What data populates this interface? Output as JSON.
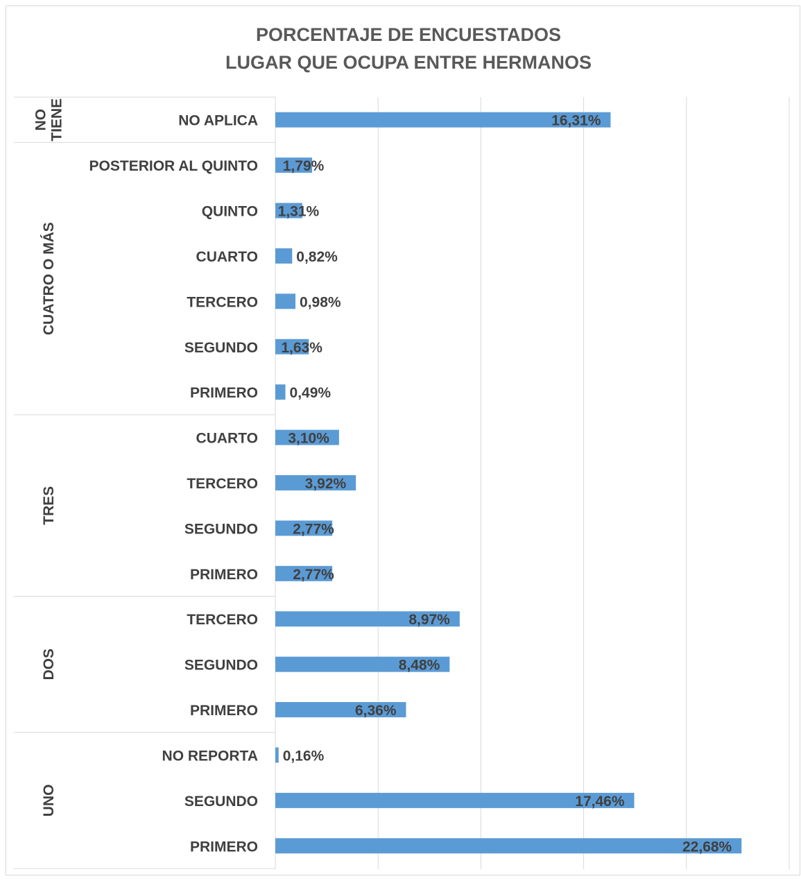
{
  "chart_data": {
    "type": "bar",
    "orientation": "horizontal",
    "title_lines": [
      "PORCENTAJE DE ENCUESTADOS",
      "LUGAR QUE OCUPA ENTRE HERMANOS"
    ],
    "xlim": [
      0,
      25
    ],
    "grid": true,
    "legend": "none",
    "bar_color": "#5b9bd5",
    "groups": [
      {
        "name": "NO TIENE",
        "label_lines": [
          "NO",
          "TIENE"
        ],
        "categories": [
          "NO APLICA"
        ],
        "values": [
          16.31
        ],
        "labels": [
          "16,31%"
        ]
      },
      {
        "name": "CUATRO O MÁS",
        "label_lines": [
          "CUATRO O MÁS"
        ],
        "categories": [
          "POSTERIOR AL QUINTO",
          "QUINTO",
          "CUARTO",
          "TERCERO",
          "SEGUNDO",
          "PRIMERO"
        ],
        "values": [
          1.79,
          1.31,
          0.82,
          0.98,
          1.63,
          0.49
        ],
        "labels": [
          "1,79%",
          "1,31%",
          "0,82%",
          "0,98%",
          "1,63%",
          "0,49%"
        ]
      },
      {
        "name": "TRES",
        "label_lines": [
          "TRES"
        ],
        "categories": [
          "CUARTO",
          "TERCERO",
          "SEGUNDO",
          "PRIMERO"
        ],
        "values": [
          3.1,
          3.92,
          2.77,
          2.77
        ],
        "labels": [
          "3,10%",
          "3,92%",
          "2,77%",
          "2,77%"
        ]
      },
      {
        "name": "DOS",
        "label_lines": [
          "DOS"
        ],
        "categories": [
          "TERCERO",
          "SEGUNDO",
          "PRIMERO"
        ],
        "values": [
          8.97,
          8.48,
          6.36
        ],
        "labels": [
          "8,97%",
          "8,48%",
          "6,36%"
        ]
      },
      {
        "name": "UNO",
        "label_lines": [
          "UNO"
        ],
        "categories": [
          "NO REPORTA",
          "SEGUNDO",
          "PRIMERO"
        ],
        "values": [
          0.16,
          17.46,
          22.68
        ],
        "labels": [
          "0,16%",
          "17,46%",
          "22,68%"
        ]
      }
    ]
  }
}
